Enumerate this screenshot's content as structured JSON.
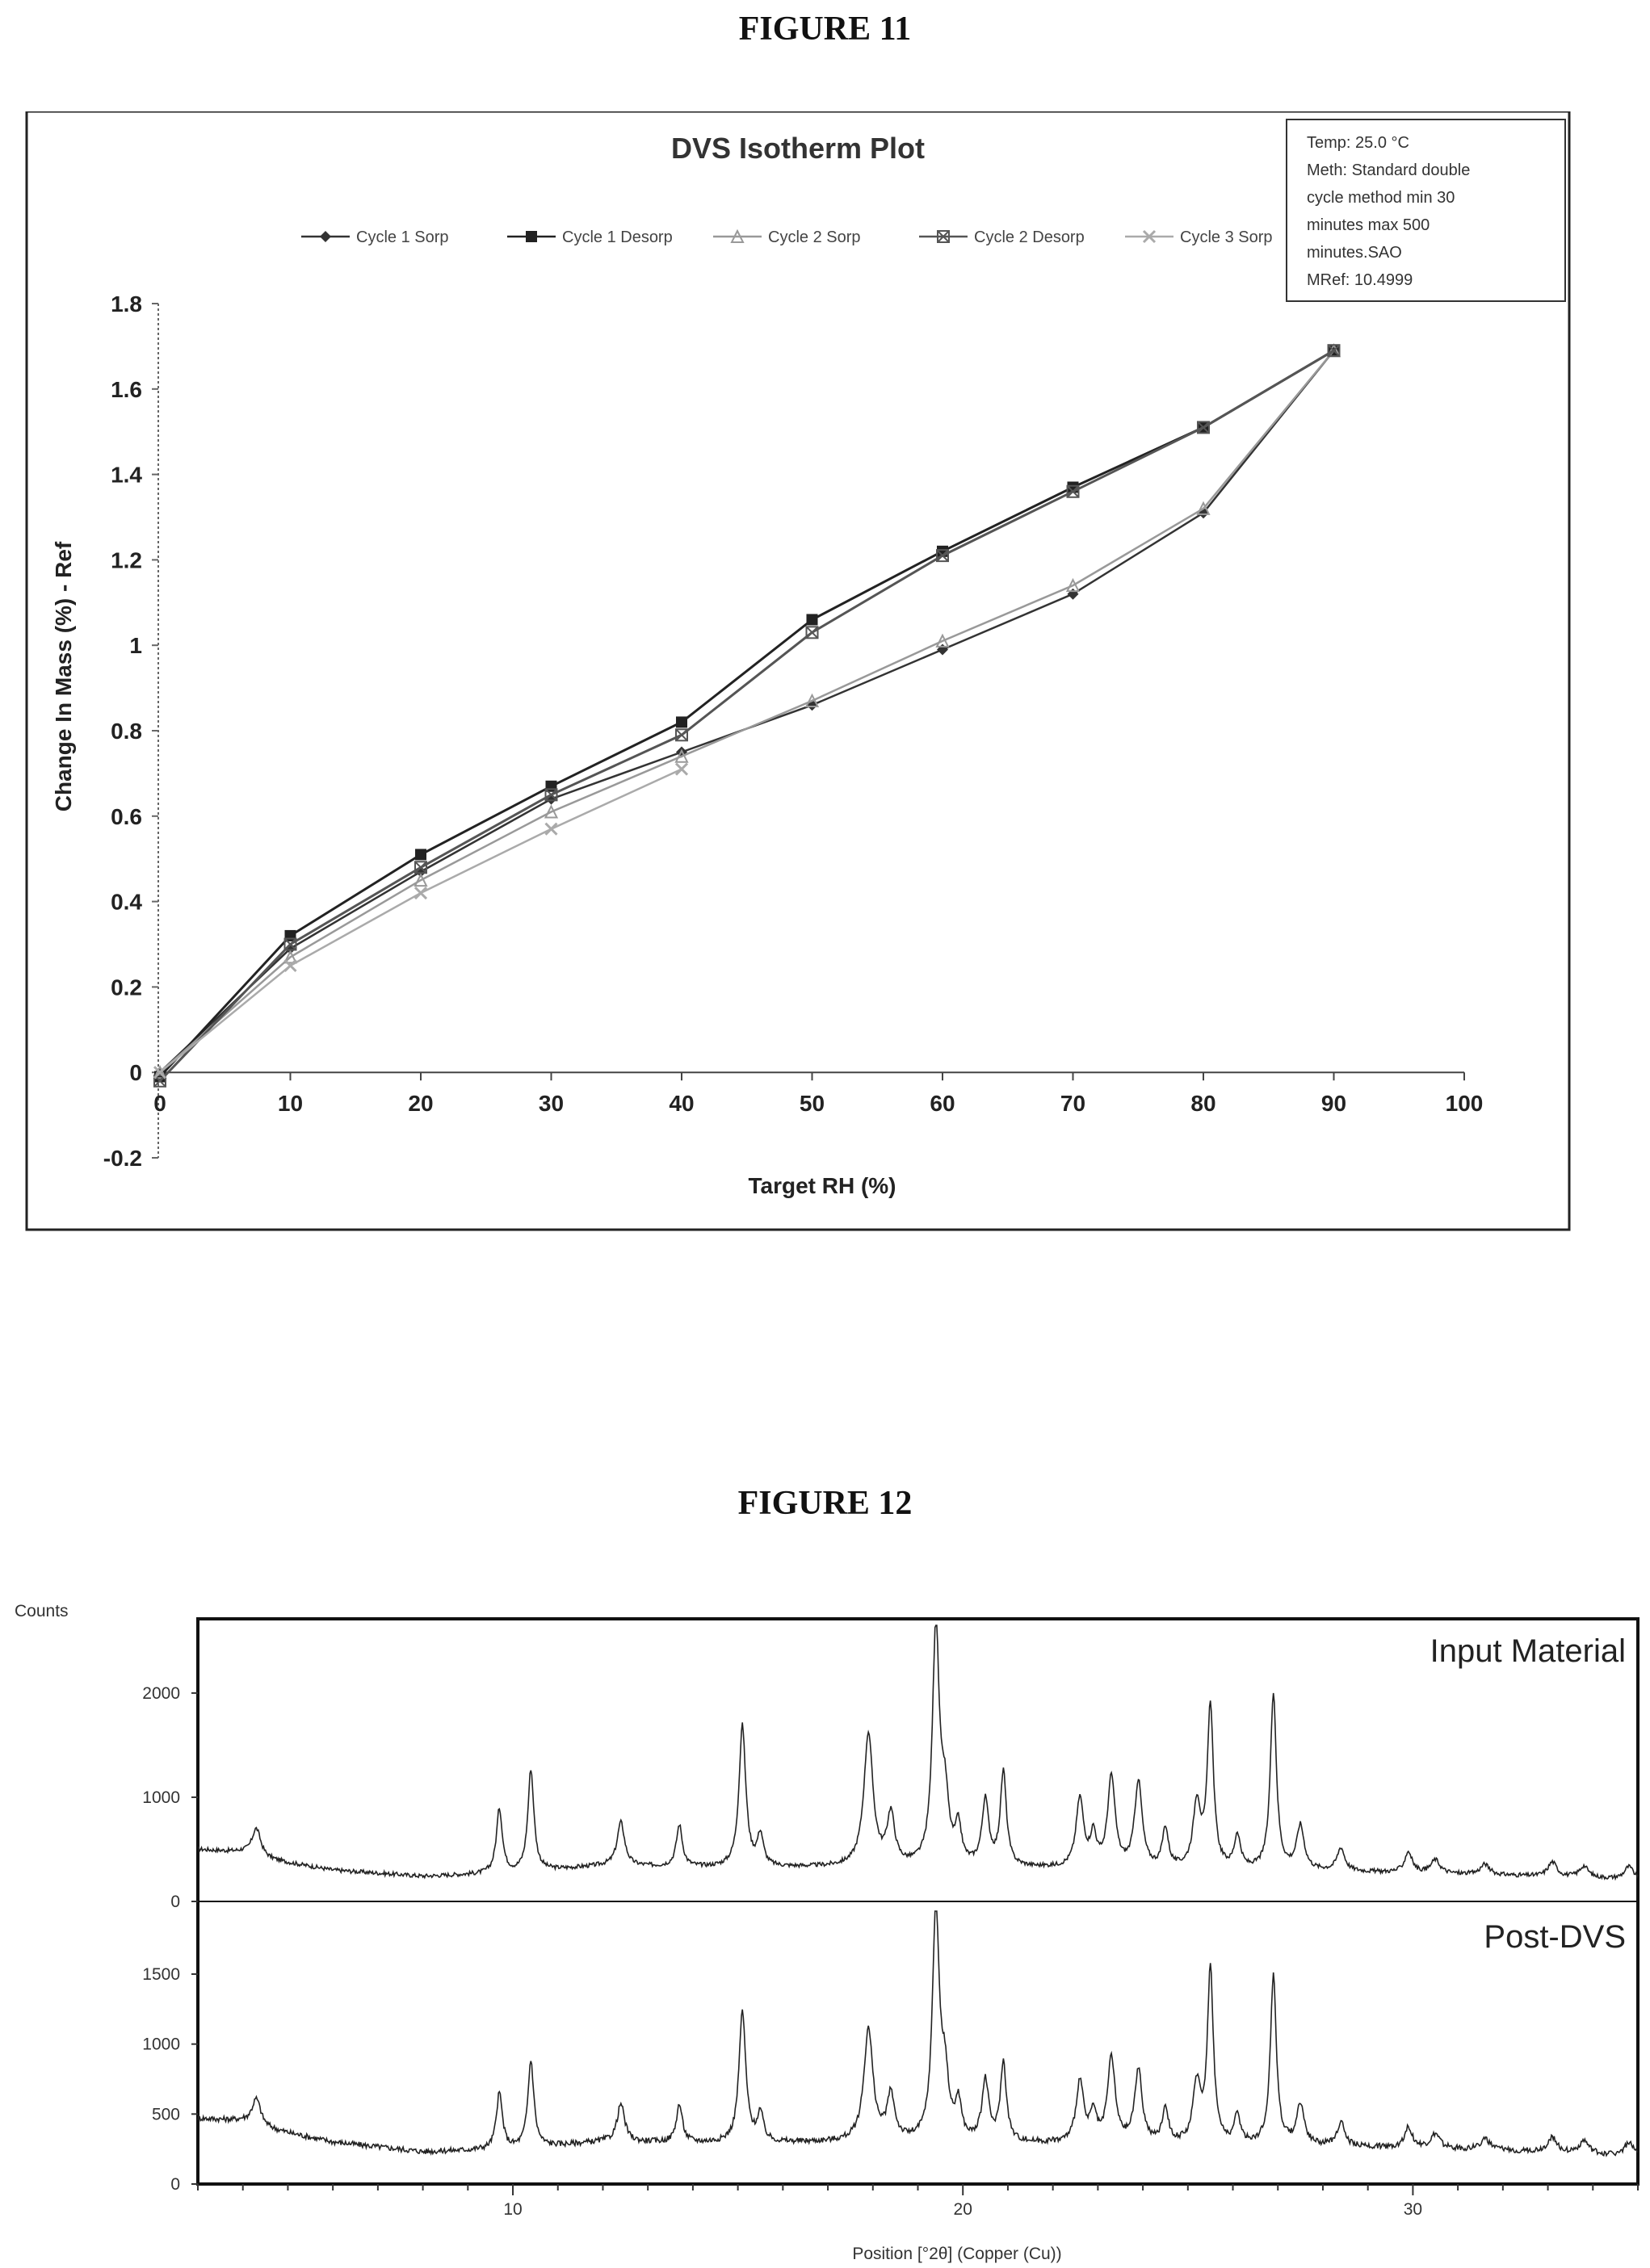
{
  "figure11": {
    "caption": "FIGURE 11",
    "chart_data": {
      "type": "line",
      "title": "DVS Isotherm Plot",
      "xlabel": "Target RH (%)",
      "ylabel": "Change In Mass (%) - Ref",
      "xlim": [
        0,
        100
      ],
      "ylim": [
        -0.2,
        1.8
      ],
      "x_ticks": [
        "0",
        "10",
        "20",
        "30",
        "40",
        "50",
        "60",
        "70",
        "80",
        "90",
        "100"
      ],
      "y_ticks": [
        "1.8",
        "1.6",
        "1.4",
        "1.2",
        "1",
        "0.8",
        "0.6",
        "0.4",
        "0.2",
        "0",
        "-0.2"
      ],
      "grid": false,
      "legend_position": "top",
      "series": [
        {
          "name": "Cycle 1 Sorp",
          "marker": "diamond",
          "color": "#333333",
          "x": [
            0,
            10,
            20,
            30,
            40,
            50,
            60,
            70,
            80,
            90
          ],
          "y": [
            0.0,
            0.29,
            0.47,
            0.64,
            0.75,
            0.86,
            0.99,
            1.12,
            1.31,
            1.69
          ]
        },
        {
          "name": "Cycle 1 Desorp",
          "marker": "square",
          "color": "#222222",
          "x": [
            90,
            80,
            70,
            60,
            50,
            40,
            30,
            20,
            10,
            0
          ],
          "y": [
            1.69,
            1.51,
            1.37,
            1.22,
            1.06,
            0.82,
            0.67,
            0.51,
            0.32,
            -0.01
          ]
        },
        {
          "name": "Cycle 2 Sorp",
          "marker": "triangle",
          "color": "#999999",
          "x": [
            0,
            10,
            20,
            30,
            40,
            50,
            60,
            70,
            80,
            90
          ],
          "y": [
            0.0,
            0.27,
            0.45,
            0.61,
            0.74,
            0.87,
            1.01,
            1.14,
            1.32,
            1.69
          ]
        },
        {
          "name": "Cycle 2 Desorp",
          "marker": "x-square",
          "color": "#555555",
          "x": [
            90,
            80,
            70,
            60,
            50,
            40,
            30,
            20,
            10,
            0
          ],
          "y": [
            1.69,
            1.51,
            1.36,
            1.21,
            1.03,
            0.79,
            0.65,
            0.48,
            0.3,
            -0.02
          ]
        },
        {
          "name": "Cycle 3 Sorp",
          "marker": "x",
          "color": "#aaaaaa",
          "x": [
            0,
            10,
            20,
            30,
            40
          ],
          "y": [
            0.0,
            0.25,
            0.42,
            0.57,
            0.71
          ]
        }
      ],
      "info_box": [
        "Temp: 25.0 °C",
        "Meth: Standard double",
        "cycle method min 30",
        "minutes max 500",
        "minutes.SAO",
        "MRef: 10.4999"
      ]
    }
  },
  "figure12": {
    "caption": "FIGURE 12",
    "counts_label": "Counts",
    "chart_data": {
      "type": "line",
      "xlabel": "Position [°2θ] (Copper (Cu))",
      "xlim": [
        3,
        35
      ],
      "x_ticks": [
        "10",
        "20",
        "30"
      ],
      "panels": [
        {
          "name": "Input Material",
          "ylim": [
            0,
            2650
          ],
          "y_ticks": [
            "0",
            "1000",
            "2000"
          ],
          "baseline": [
            [
              3,
              500
            ],
            [
              4,
              470
            ],
            [
              4.3,
              420
            ],
            [
              6,
              300
            ],
            [
              8,
              240
            ],
            [
              10,
              270
            ],
            [
              12,
              340
            ],
            [
              15,
              320
            ],
            [
              18,
              330
            ],
            [
              21,
              320
            ],
            [
              24,
              300
            ],
            [
              28,
              290
            ],
            [
              32,
              250
            ],
            [
              35,
              210
            ]
          ],
          "peaks": [
            [
              4.3,
              280,
              0.12
            ],
            [
              9.7,
              620,
              0.08
            ],
            [
              10.4,
              980,
              0.08
            ],
            [
              12.4,
              420,
              0.1
            ],
            [
              13.7,
              400,
              0.08
            ],
            [
              15.1,
              1360,
              0.09
            ],
            [
              15.5,
              300,
              0.08
            ],
            [
              17.9,
              1270,
              0.12
            ],
            [
              18.4,
              480,
              0.1
            ],
            [
              19.4,
              2290,
              0.09
            ],
            [
              19.6,
              600,
              0.1
            ],
            [
              19.9,
              350,
              0.08
            ],
            [
              20.5,
              620,
              0.09
            ],
            [
              20.9,
              900,
              0.08
            ],
            [
              22.6,
              660,
              0.1
            ],
            [
              22.9,
              300,
              0.08
            ],
            [
              23.3,
              870,
              0.1
            ],
            [
              23.9,
              830,
              0.1
            ],
            [
              24.5,
              380,
              0.08
            ],
            [
              25.2,
              620,
              0.1
            ],
            [
              25.5,
              1560,
              0.08
            ],
            [
              26.1,
              320,
              0.08
            ],
            [
              26.9,
              1700,
              0.08
            ],
            [
              27.5,
              420,
              0.1
            ],
            [
              28.4,
              220,
              0.1
            ],
            [
              29.9,
              200,
              0.1
            ],
            [
              30.5,
              130,
              0.12
            ],
            [
              31.6,
              100,
              0.12
            ],
            [
              33.1,
              140,
              0.12
            ],
            [
              33.8,
              110,
              0.12
            ],
            [
              34.8,
              120,
              0.12
            ]
          ]
        },
        {
          "name": "Post-DVS",
          "ylim": [
            0,
            1950
          ],
          "y_ticks": [
            "0",
            "500",
            "1000",
            "1500"
          ],
          "baseline": [
            [
              3,
              470
            ],
            [
              4,
              450
            ],
            [
              4.3,
              410
            ],
            [
              6,
              300
            ],
            [
              8,
              230
            ],
            [
              10,
              250
            ],
            [
              12,
              300
            ],
            [
              15,
              290
            ],
            [
              18,
              300
            ],
            [
              21,
              290
            ],
            [
              24,
              280
            ],
            [
              28,
              270
            ],
            [
              32,
              240
            ],
            [
              35,
              200
            ]
          ],
          "peaks": [
            [
              4.3,
              200,
              0.12
            ],
            [
              9.7,
              400,
              0.08
            ],
            [
              10.4,
              620,
              0.08
            ],
            [
              12.4,
              270,
              0.1
            ],
            [
              13.7,
              270,
              0.08
            ],
            [
              15.1,
              940,
              0.09
            ],
            [
              15.5,
              200,
              0.08
            ],
            [
              17.9,
              800,
              0.12
            ],
            [
              18.4,
              320,
              0.1
            ],
            [
              19.4,
              1670,
              0.09
            ],
            [
              19.6,
              420,
              0.1
            ],
            [
              19.9,
              260,
              0.08
            ],
            [
              20.5,
              430,
              0.09
            ],
            [
              20.9,
              560,
              0.08
            ],
            [
              22.6,
              440,
              0.1
            ],
            [
              22.9,
              200,
              0.08
            ],
            [
              23.3,
              610,
              0.1
            ],
            [
              23.9,
              520,
              0.1
            ],
            [
              24.5,
              250,
              0.08
            ],
            [
              25.2,
              420,
              0.1
            ],
            [
              25.5,
              1240,
              0.08
            ],
            [
              26.1,
              200,
              0.08
            ],
            [
              26.9,
              1210,
              0.08
            ],
            [
              27.5,
              290,
              0.1
            ],
            [
              28.4,
              170,
              0.1
            ],
            [
              29.9,
              150,
              0.1
            ],
            [
              30.5,
              100,
              0.12
            ],
            [
              31.6,
              80,
              0.12
            ],
            [
              33.1,
              110,
              0.12
            ],
            [
              33.8,
              90,
              0.12
            ],
            [
              34.8,
              90,
              0.12
            ]
          ]
        }
      ]
    }
  }
}
